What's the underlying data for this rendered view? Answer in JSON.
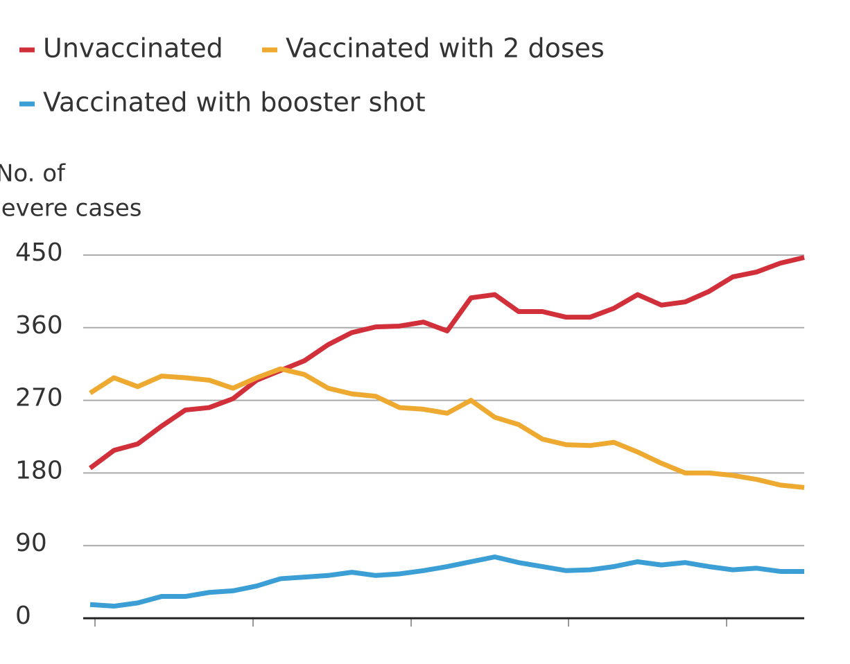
{
  "chart_data": {
    "type": "line",
    "y_label_lines": [
      "No. of",
      "severe cases"
    ],
    "series": [
      {
        "name": "Unvaccinated",
        "color": "#d1303a",
        "values": [
          186,
          208,
          216,
          238,
          258,
          261,
          272,
          295,
          307,
          319,
          339,
          354,
          361,
          362,
          367,
          356,
          397,
          401,
          380,
          380,
          373,
          373,
          384,
          401,
          388,
          392,
          405,
          423,
          429,
          440,
          447
        ]
      },
      {
        "name": "Vaccinated with 2 doses",
        "color": "#eeaa30",
        "values": [
          279,
          298,
          287,
          300,
          298,
          295,
          285,
          298,
          309,
          302,
          285,
          278,
          275,
          261,
          259,
          254,
          270,
          249,
          240,
          222,
          215,
          214,
          218,
          206,
          192,
          180,
          180,
          177,
          172,
          165,
          162
        ]
      },
      {
        "name": "Vaccinated with booster shot",
        "color": "#3b9fd6",
        "values": [
          17,
          15,
          19,
          27,
          27,
          32,
          34,
          40,
          49,
          51,
          53,
          57,
          53,
          55,
          59,
          64,
          70,
          76,
          69,
          64,
          59,
          60,
          64,
          70,
          66,
          69,
          64,
          60,
          62,
          58,
          58
        ]
      }
    ],
    "ylim": [
      0,
      450
    ],
    "yticks": [
      0,
      90,
      180,
      270,
      360,
      450
    ],
    "grid": true
  }
}
